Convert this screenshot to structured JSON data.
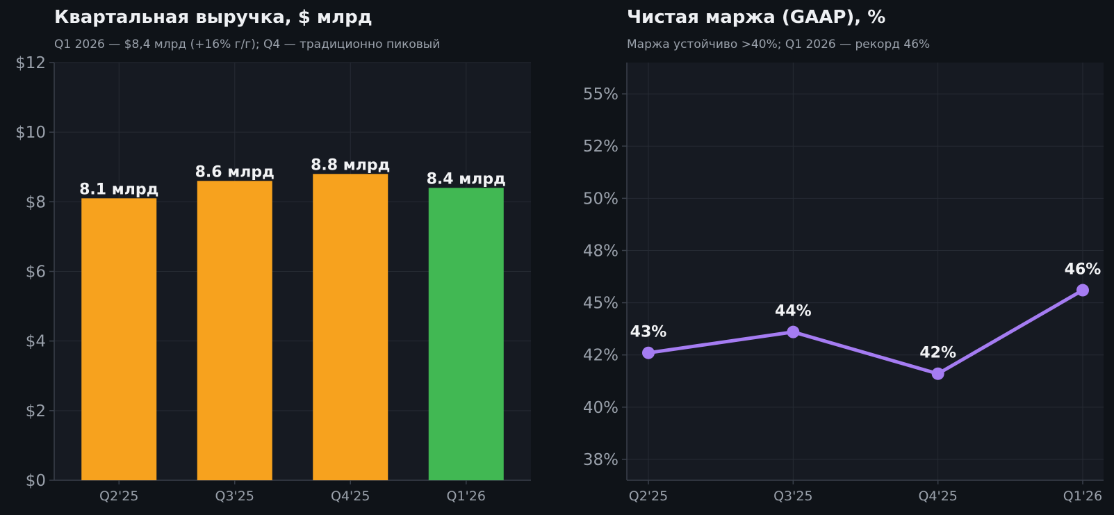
{
  "chart_data": [
    {
      "type": "bar",
      "title": "Квартальная выручка, $ млрд",
      "subtitle": "Q1 2026 — $8,4 млрд (+16% г/г); Q4 — традиционно пиковый",
      "categories": [
        "Q2'25",
        "Q3'25",
        "Q4'25",
        "Q1'26"
      ],
      "values": [
        8.1,
        8.6,
        8.8,
        8.4
      ],
      "data_labels": [
        "8.1 млрд",
        "8.6 млрд",
        "8.8 млрд",
        "8.4 млрд"
      ],
      "bar_colors": [
        "#f7a21e",
        "#f7a21e",
        "#f7a21e",
        "#41b853"
      ],
      "ylim": [
        0,
        12
      ],
      "yticks": [
        0,
        2,
        4,
        6,
        8,
        10,
        12
      ],
      "ytick_labels": [
        "$0",
        "$2",
        "$4",
        "$6",
        "$8",
        "$10",
        "$12"
      ],
      "xlabel": "",
      "ylabel": "",
      "grid": true
    },
    {
      "type": "line",
      "title": "Чистая маржа (GAAP), %",
      "subtitle": "Маржа устойчиво >40%; Q1 2026 — рекорд 46%",
      "categories": [
        "Q2'25",
        "Q3'25",
        "Q4'25",
        "Q1'26"
      ],
      "values": [
        42.6,
        43.6,
        41.6,
        45.6
      ],
      "data_labels": [
        "43%",
        "44%",
        "42%",
        "46%"
      ],
      "line_color": "#a57cf2",
      "ylim": [
        36.5,
        56.5
      ],
      "yticks": [
        37.5,
        40,
        42.5,
        45,
        47.5,
        50,
        52.5,
        55
      ],
      "ytick_labels": [
        "38%",
        "40%",
        "42%",
        "45%",
        "48%",
        "50%",
        "52%",
        "55%"
      ],
      "xlabel": "",
      "ylabel": "",
      "grid": true
    }
  ],
  "colors": {
    "page_bg": "#0f1318",
    "plot_bg": "#161a22",
    "grid": "#262b34",
    "axis": "#3a404b"
  }
}
